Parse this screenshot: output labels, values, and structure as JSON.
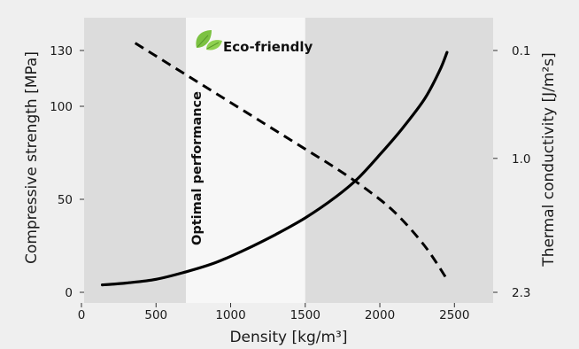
{
  "chart_data": {
    "type": "line",
    "xlabel": "Density [kg/m³]",
    "ylabel_left": "Compressive strength [MPa]",
    "ylabel_right": "Thermal conductivity [J/m²s]",
    "xlim": [
      0,
      2700
    ],
    "ylim_left": [
      0,
      135
    ],
    "x_ticks": [
      0,
      500,
      1000,
      1500,
      2000,
      2500
    ],
    "y_left_ticks": [
      0,
      50,
      100,
      130
    ],
    "y_right_ticks": [
      {
        "label": "0.1",
        "at_left_value": 130
      },
      {
        "label": "1.0",
        "at_left_value": 72
      },
      {
        "label": "2.3",
        "at_left_value": 0
      }
    ],
    "grid": false,
    "bands": [
      {
        "label": "Optimal performance",
        "x_range": [
          700,
          1500
        ],
        "color": "#f7f7f7"
      }
    ],
    "annotations": [
      {
        "text": "Eco-friendly",
        "icon": "leaf-icon",
        "icon_color": "#7cc242"
      }
    ],
    "series": [
      {
        "axis": "left",
        "style": "solid",
        "color": "#000000",
        "points": [
          [
            140,
            4
          ],
          [
            300,
            5
          ],
          [
            500,
            7
          ],
          [
            700,
            11
          ],
          [
            900,
            16
          ],
          [
            1100,
            23
          ],
          [
            1300,
            31
          ],
          [
            1500,
            40
          ],
          [
            1700,
            51
          ],
          [
            1850,
            61
          ],
          [
            2000,
            74
          ],
          [
            2150,
            88
          ],
          [
            2300,
            104
          ],
          [
            2400,
            119
          ],
          [
            2450,
            129
          ]
        ]
      },
      {
        "axis": "right",
        "style": "dashed",
        "color": "#000000",
        "points": [
          [
            360,
            134
          ],
          [
            500,
            127
          ],
          [
            700,
            117
          ],
          [
            900,
            107
          ],
          [
            1100,
            97
          ],
          [
            1300,
            87
          ],
          [
            1500,
            77
          ],
          [
            1700,
            67
          ],
          [
            1900,
            56
          ],
          [
            2100,
            43
          ],
          [
            2300,
            25
          ],
          [
            2450,
            7
          ]
        ]
      }
    ]
  }
}
